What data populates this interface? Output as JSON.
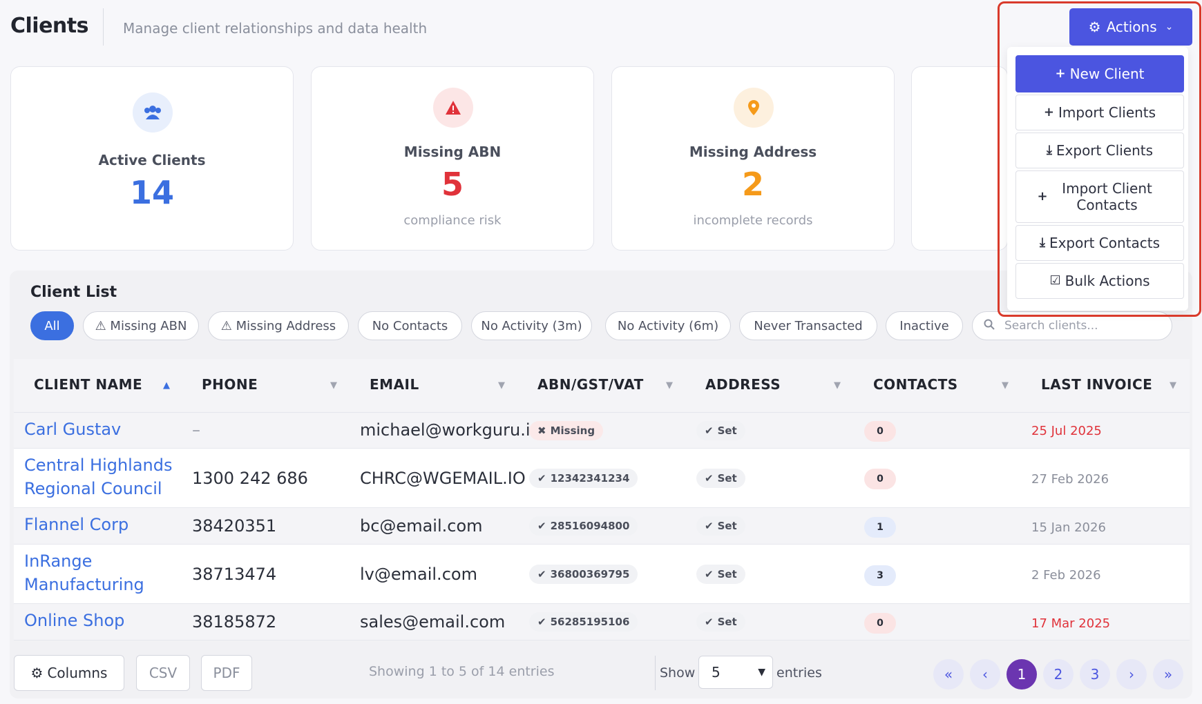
{
  "header": {
    "title": "Clients",
    "subtitle": "Manage client relationships and data health",
    "actions_label": "Actions"
  },
  "actions_menu": {
    "items": [
      {
        "icon": "plus-icon",
        "glyph": "+",
        "label": "New Client"
      },
      {
        "icon": "plus-icon",
        "glyph": "+",
        "label": "Import Clients"
      },
      {
        "icon": "download-icon",
        "glyph": "⤓",
        "label": "Export Clients"
      },
      {
        "icon": "plus-icon",
        "glyph": "+",
        "label": "Import Client Contacts"
      },
      {
        "icon": "download-icon",
        "glyph": "⤓",
        "label": "Export Contacts"
      },
      {
        "icon": "checkbox-icon",
        "glyph": "☑",
        "label": "Bulk Actions"
      }
    ]
  },
  "cards": [
    {
      "label": "Active Clients",
      "value": "14",
      "sub": "",
      "icon": "users-icon",
      "glyph": "👥",
      "color": "#3b6fe0"
    },
    {
      "label": "Missing ABN",
      "value": "5",
      "sub": "compliance risk",
      "icon": "warning-icon",
      "glyph": "▲",
      "color": "#e0323a"
    },
    {
      "label": "Missing Address",
      "value": "2",
      "sub": "incomplete records",
      "icon": "map-pin-icon",
      "glyph": "●",
      "color": "#f59a1a"
    }
  ],
  "client_list": {
    "title": "Client List",
    "filters": [
      "All",
      "⚠ Missing ABN",
      "⚠ Missing Address",
      "No Contacts",
      "No Activity (3m)",
      "No Activity (6m)",
      "Never Transacted",
      "Inactive"
    ],
    "search_placeholder": "Search clients..."
  },
  "table": {
    "columns": [
      "CLIENT NAME",
      "PHONE",
      "EMAIL",
      "ABN/GST/VAT",
      "ADDRESS",
      "CONTACTS",
      "LAST INVOICE"
    ],
    "rows": [
      {
        "name": "Carl Gustav",
        "phone": "–",
        "email": "michael@workguru.ic",
        "abn": "Missing",
        "abn_missing": true,
        "address": "Set",
        "contacts": "0",
        "last_invoice": "25 Jul 2025",
        "overdue": true
      },
      {
        "name": "Central Highlands Regional Council",
        "phone": "1300 242 686",
        "email": "CHRC@WGEMAIL.IO",
        "abn": "12342341234",
        "abn_missing": false,
        "address": "Set",
        "contacts": "0",
        "last_invoice": "27 Feb 2026",
        "overdue": false
      },
      {
        "name": "Flannel Corp",
        "phone": "38420351",
        "email": "bc@email.com",
        "abn": "28516094800",
        "abn_missing": false,
        "address": "Set",
        "contacts": "1",
        "last_invoice": "15 Jan 2026",
        "overdue": false
      },
      {
        "name": "InRange Manufacturing",
        "phone": "38713474",
        "email": "lv@email.com",
        "abn": "36800369795",
        "abn_missing": false,
        "address": "Set",
        "contacts": "3",
        "last_invoice": "2 Feb 2026",
        "overdue": false
      },
      {
        "name": "Online Shop",
        "phone": "38185872",
        "email": "sales@email.com",
        "abn": "56285195106",
        "abn_missing": false,
        "address": "Set",
        "contacts": "0",
        "last_invoice": "17 Mar 2025",
        "overdue": true
      }
    ]
  },
  "footer": {
    "columns_label": "Columns",
    "csv_label": "CSV",
    "pdf_label": "PDF",
    "info": "Showing 1 to 5 of 14 entries",
    "show_label": "Show",
    "page_size": "5",
    "entries_label": "entries",
    "pages": [
      "«",
      "‹",
      "1",
      "2",
      "3",
      "›",
      "»"
    ],
    "current_page": "1"
  }
}
